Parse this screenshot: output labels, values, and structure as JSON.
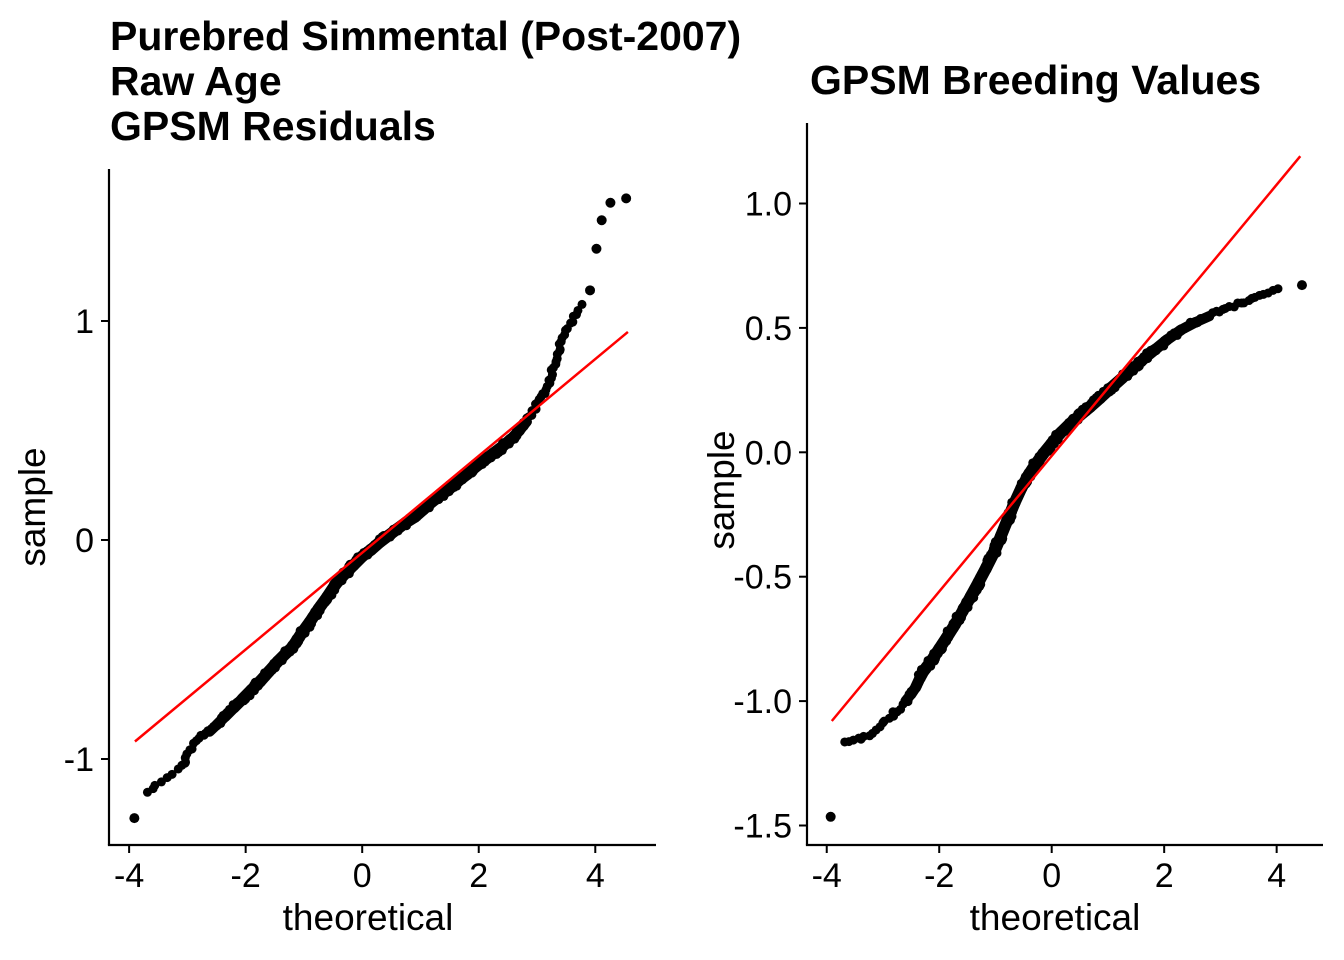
{
  "page": {
    "background": "#ffffff",
    "text_color": "#000000"
  },
  "chart_data": [
    {
      "type": "scatter",
      "subtype": "qq-plot",
      "title": "Purebred Simmental (Post-2007)\nRaw Age\nGPSM Residuals",
      "xlabel": "theoretical",
      "ylabel": "sample",
      "xlim": [
        -4.3,
        5.0
      ],
      "ylim": [
        -1.55,
        1.75
      ],
      "grid": false,
      "legend": null,
      "point_color": "#000000",
      "x_ticks": [
        {
          "value": -4,
          "label": "-4"
        },
        {
          "value": -2,
          "label": "-2"
        },
        {
          "value": 0,
          "label": "0"
        },
        {
          "value": 2,
          "label": "2"
        },
        {
          "value": 4,
          "label": "4"
        }
      ],
      "y_ticks": [
        {
          "value": 1,
          "label": "1"
        },
        {
          "value": 0,
          "label": "0"
        },
        {
          "value": -1,
          "label": "-1"
        }
      ],
      "ref_line": {
        "color": "#ff0000",
        "x1": -3.9,
        "y1": -0.92,
        "x2": 4.56,
        "y2": 0.95
      },
      "curve_points": [
        [
          -3.66,
          -1.15,
          5.5,
          1.2
        ],
        [
          -3.55,
          -1.12,
          5.5,
          1.2
        ],
        [
          -3.45,
          -1.105,
          5.5,
          1.2
        ],
        [
          -3.35,
          -1.085,
          5.0,
          1.3
        ],
        [
          -3.25,
          -1.065,
          5.0,
          1.4
        ],
        [
          -3.15,
          -1.045,
          4.5,
          1.5
        ],
        [
          -3.05,
          -1.025,
          4.0,
          1.6
        ],
        [
          -3.0,
          -0.975,
          4.0,
          1.8
        ],
        [
          -2.88,
          -0.935,
          3.4,
          2.2
        ],
        [
          -2.75,
          -0.9,
          3.4,
          2.2
        ],
        [
          -2.62,
          -0.875,
          3.2,
          2.4
        ],
        [
          -2.5,
          -0.845,
          3.0,
          2.6
        ],
        [
          -2.35,
          -0.805,
          2.6,
          2.8
        ],
        [
          -2.2,
          -0.765,
          2.1,
          3.0
        ],
        [
          -2.05,
          -0.725,
          1.9,
          3.2
        ],
        [
          -1.9,
          -0.685,
          1.9,
          3.2
        ],
        [
          -1.75,
          -0.645,
          1.9,
          3.2
        ],
        [
          -1.6,
          -0.6,
          1.9,
          3.2
        ],
        [
          -1.45,
          -0.555,
          1.9,
          3.2
        ],
        [
          -1.3,
          -0.515,
          1.9,
          3.2
        ],
        [
          -1.2,
          -0.49,
          1.9,
          3.2
        ],
        [
          -1.05,
          -0.43,
          1.9,
          3.2
        ],
        [
          -0.9,
          -0.375,
          1.9,
          3.2
        ],
        [
          -0.75,
          -0.315,
          1.9,
          3.2
        ],
        [
          -0.6,
          -0.26,
          1.9,
          3.2
        ],
        [
          -0.45,
          -0.2,
          1.9,
          3.2
        ],
        [
          -0.3,
          -0.155,
          1.9,
          3.2
        ],
        [
          -0.15,
          -0.115,
          1.9,
          3.2
        ],
        [
          0.0,
          -0.075,
          1.9,
          3.2
        ],
        [
          0.15,
          -0.045,
          1.9,
          3.2
        ],
        [
          0.3,
          -0.01,
          1.9,
          3.2
        ],
        [
          0.45,
          0.02,
          1.9,
          3.2
        ],
        [
          0.6,
          0.05,
          1.9,
          3.2
        ],
        [
          0.75,
          0.08,
          1.9,
          3.2
        ],
        [
          0.9,
          0.105,
          1.9,
          3.2
        ],
        [
          1.05,
          0.14,
          1.9,
          3.2
        ],
        [
          1.2,
          0.175,
          1.9,
          3.2
        ],
        [
          1.35,
          0.205,
          1.9,
          3.2
        ],
        [
          1.5,
          0.235,
          1.9,
          3.2
        ],
        [
          1.65,
          0.27,
          1.9,
          3.2
        ],
        [
          1.8,
          0.3,
          1.9,
          3.2
        ],
        [
          1.95,
          0.335,
          1.9,
          3.2
        ],
        [
          2.1,
          0.365,
          1.9,
          3.2
        ],
        [
          2.25,
          0.395,
          1.9,
          3.2
        ],
        [
          2.4,
          0.425,
          2.0,
          3.0
        ],
        [
          2.55,
          0.46,
          2.4,
          2.7
        ],
        [
          2.7,
          0.5,
          2.6,
          2.5
        ],
        [
          2.82,
          0.54,
          2.8,
          2.2
        ],
        [
          2.93,
          0.585,
          3.0,
          2.0
        ],
        [
          3.02,
          0.63,
          3.2,
          1.9
        ],
        [
          3.1,
          0.665,
          3.2,
          1.9
        ],
        [
          3.17,
          0.7,
          3.2,
          1.8
        ],
        [
          3.23,
          0.745,
          3.2,
          1.8
        ],
        [
          3.28,
          0.79,
          3.2,
          1.7
        ],
        [
          3.33,
          0.835,
          3.4,
          1.6
        ],
        [
          3.38,
          0.875,
          3.4,
          1.6
        ],
        [
          3.44,
          0.915,
          3.6,
          1.5
        ],
        [
          3.5,
          0.95,
          4.0,
          1.4
        ],
        [
          3.57,
          0.985,
          4.4,
          1.4
        ],
        [
          3.64,
          1.02,
          4.6,
          1.3
        ],
        [
          3.72,
          1.05,
          5.0,
          1.2
        ],
        [
          3.78,
          1.07,
          5.0,
          1.2
        ],
        [
          3.83,
          1.085,
          5.0,
          1.1
        ]
      ],
      "outlier_points": [
        [
          -3.91,
          -1.27
        ],
        [
          3.91,
          1.14
        ],
        [
          4.02,
          1.33
        ],
        [
          4.11,
          1.46
        ],
        [
          4.26,
          1.54
        ],
        [
          4.53,
          1.56
        ]
      ]
    },
    {
      "type": "scatter",
      "subtype": "qq-plot",
      "title": "GPSM Breeding Values",
      "xlabel": "theoretical",
      "ylabel": "sample",
      "xlim": [
        -4.4,
        4.8
      ],
      "ylim": [
        -1.6,
        1.3
      ],
      "grid": false,
      "legend": null,
      "point_color": "#000000",
      "x_ticks": [
        {
          "value": -4,
          "label": "-4"
        },
        {
          "value": -2,
          "label": "-2"
        },
        {
          "value": 0,
          "label": "0"
        },
        {
          "value": 2,
          "label": "2"
        },
        {
          "value": 4,
          "label": "4"
        }
      ],
      "y_ticks": [
        {
          "value": 1.0,
          "label": "1.0"
        },
        {
          "value": 0.5,
          "label": "0.5"
        },
        {
          "value": 0.0,
          "label": "0.0"
        },
        {
          "value": -0.5,
          "label": "-0.5"
        },
        {
          "value": -1.0,
          "label": "-1.0"
        },
        {
          "value": -1.5,
          "label": "-1.5"
        }
      ],
      "ref_line": {
        "color": "#ff0000",
        "x1": -3.91,
        "y1": -1.08,
        "x2": 4.42,
        "y2": 1.19
      },
      "curve_points": [
        [
          -3.65,
          -1.165,
          4.0,
          1.6
        ],
        [
          -3.52,
          -1.158,
          4.5,
          1.4
        ],
        [
          -3.38,
          -1.148,
          4.5,
          1.4
        ],
        [
          -3.25,
          -1.135,
          4.5,
          1.4
        ],
        [
          -3.12,
          -1.115,
          4.5,
          1.5
        ],
        [
          -3.0,
          -1.095,
          4.0,
          1.8
        ],
        [
          -2.9,
          -1.072,
          4.0,
          2.0
        ],
        [
          -2.8,
          -1.048,
          3.6,
          2.2
        ],
        [
          -2.7,
          -1.024,
          3.6,
          2.2
        ],
        [
          -2.6,
          -1.0,
          3.2,
          2.4
        ],
        [
          -2.5,
          -0.972,
          3.0,
          2.6
        ],
        [
          -2.42,
          -0.945,
          2.8,
          2.8
        ],
        [
          -2.34,
          -0.906,
          2.4,
          3.0
        ],
        [
          -2.27,
          -0.877,
          2.0,
          3.2
        ],
        [
          -2.14,
          -0.838,
          1.9,
          3.2
        ],
        [
          -2.0,
          -0.79,
          1.9,
          3.2
        ],
        [
          -1.86,
          -0.742,
          1.9,
          3.2
        ],
        [
          -1.72,
          -0.692,
          1.9,
          3.2
        ],
        [
          -1.58,
          -0.637,
          1.9,
          3.2
        ],
        [
          -1.44,
          -0.58,
          1.9,
          3.2
        ],
        [
          -1.3,
          -0.522,
          1.9,
          3.2
        ],
        [
          -1.16,
          -0.462,
          1.9,
          3.2
        ],
        [
          -1.02,
          -0.4,
          1.9,
          3.2
        ],
        [
          -0.9,
          -0.335,
          1.9,
          3.2
        ],
        [
          -0.78,
          -0.268,
          1.9,
          3.2
        ],
        [
          -0.66,
          -0.203,
          1.9,
          3.2
        ],
        [
          -0.54,
          -0.144,
          1.9,
          3.2
        ],
        [
          -0.42,
          -0.094,
          1.9,
          3.2
        ],
        [
          -0.3,
          -0.052,
          1.9,
          3.2
        ],
        [
          -0.15,
          -0.006,
          1.9,
          3.2
        ],
        [
          0.0,
          0.036,
          1.9,
          3.2
        ],
        [
          0.15,
          0.076,
          1.9,
          3.2
        ],
        [
          0.32,
          0.114,
          1.9,
          3.2
        ],
        [
          0.5,
          0.148,
          1.9,
          3.2
        ],
        [
          0.68,
          0.182,
          1.9,
          3.2
        ],
        [
          0.86,
          0.218,
          1.9,
          3.2
        ],
        [
          1.05,
          0.258,
          1.9,
          3.2
        ],
        [
          1.25,
          0.298,
          2.0,
          3.1
        ],
        [
          1.45,
          0.338,
          2.2,
          3.0
        ],
        [
          1.65,
          0.378,
          2.4,
          2.9
        ],
        [
          1.85,
          0.415,
          2.6,
          2.8
        ],
        [
          2.05,
          0.452,
          2.8,
          2.7
        ],
        [
          2.3,
          0.492,
          3.0,
          2.5
        ],
        [
          2.55,
          0.522,
          3.2,
          2.4
        ],
        [
          2.8,
          0.547,
          3.4,
          2.2
        ],
        [
          3.05,
          0.57,
          3.6,
          2.0
        ],
        [
          3.3,
          0.592,
          4.0,
          1.9
        ],
        [
          3.5,
          0.61,
          4.5,
          1.7
        ],
        [
          3.7,
          0.63,
          5.0,
          1.5
        ],
        [
          3.85,
          0.645,
          5.5,
          1.3
        ],
        [
          4.0,
          0.658,
          6.0,
          1.1
        ],
        [
          4.09,
          0.668,
          6.0,
          1.0
        ]
      ],
      "outlier_points": [
        [
          -3.93,
          -1.465
        ],
        [
          4.45,
          0.672
        ]
      ]
    }
  ]
}
